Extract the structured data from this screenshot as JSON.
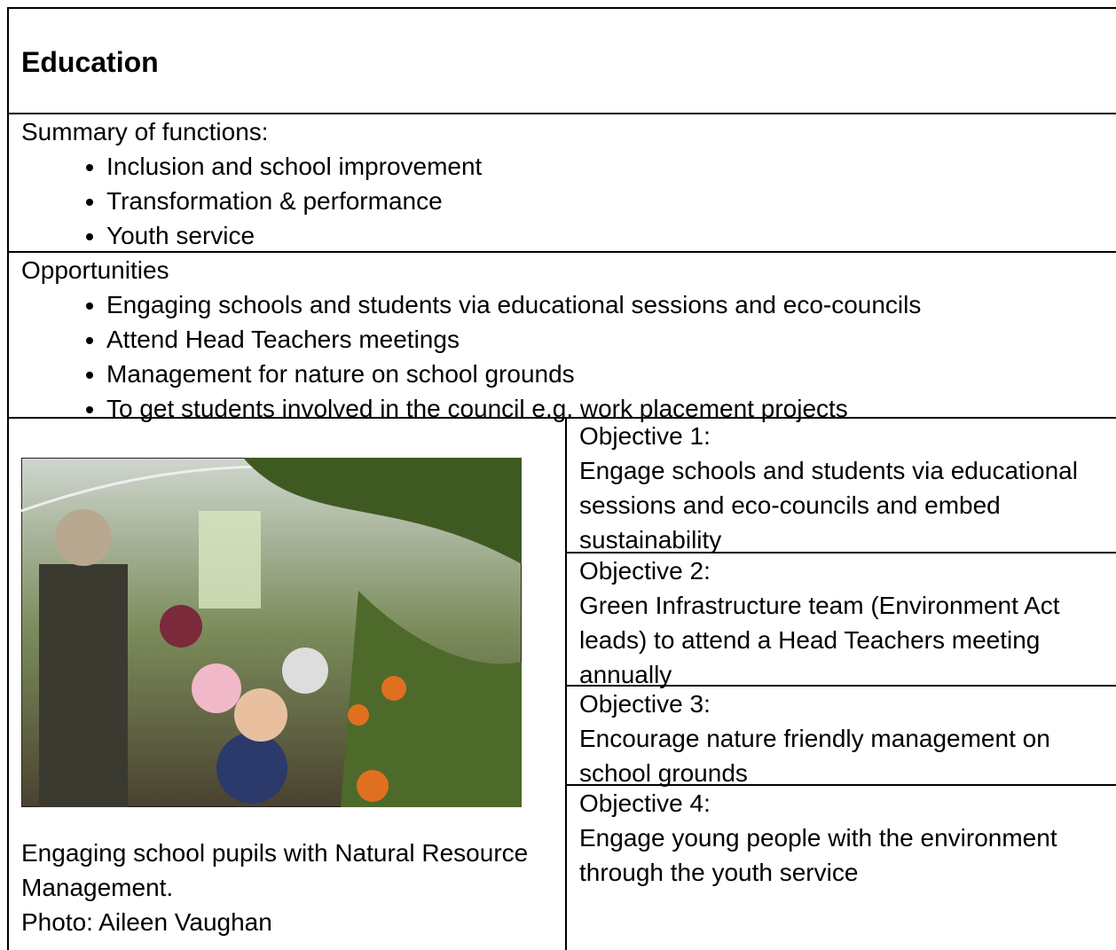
{
  "title": "Education",
  "summary": {
    "heading": "Summary of functions:",
    "items": [
      "Inclusion and school improvement",
      "Transformation & performance",
      "Youth service"
    ]
  },
  "opportunities": {
    "heading": "Opportunities",
    "items": [
      "Engaging schools and students via educational sessions and eco-councils",
      "Attend Head Teachers meetings",
      "Management for nature on school grounds",
      "To get students involved in the council e.g. work placement projects"
    ]
  },
  "photo": {
    "caption": "Engaging school pupils with Natural Resource Management.",
    "credit": "Photo: Aileen Vaughan"
  },
  "objectives": [
    {
      "label": "Objective 1:",
      "text": "Engage schools and students via educational sessions and eco-councils and embed sustainability"
    },
    {
      "label": "Objective 2:",
      "text": "Green Infrastructure team (Environment Act leads) to attend a Head Teachers meeting annually"
    },
    {
      "label": "Objective 3:",
      "text": "Encourage nature friendly management on school grounds"
    },
    {
      "label": "Objective 4:",
      "text": "Engage young people with the environment through the youth service"
    }
  ]
}
